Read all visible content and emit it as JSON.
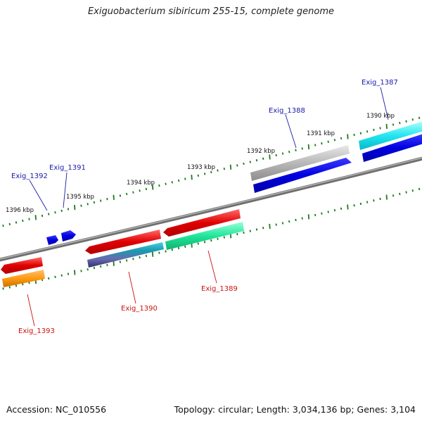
{
  "title": "Exiguobacterium sibiricum 255-15, complete genome",
  "footer": {
    "accession": "Accession: NC_010556",
    "topology": "Topology: circular; Length: 3,034,136 bp; Genes: 3,104"
  },
  "colors": {
    "backbone": "#8a8a8a",
    "tick": "#1d7a1d",
    "label_forward": "#1a1aa8",
    "label_reverse": "#cc1111"
  },
  "scale_labels": [
    {
      "text": "1390 kbp"
    },
    {
      "text": "1391 kbp"
    },
    {
      "text": "1392 kbp"
    },
    {
      "text": "1393 kbp"
    },
    {
      "text": "1394 kbp"
    },
    {
      "text": "1395 kbp"
    },
    {
      "text": "1396 kbp"
    }
  ],
  "gene_labels": [
    {
      "text": "Exig_1387",
      "strand": "forward"
    },
    {
      "text": "Exig_1388",
      "strand": "forward"
    },
    {
      "text": "Exig_1391",
      "strand": "forward"
    },
    {
      "text": "Exig_1392",
      "strand": "forward"
    },
    {
      "text": "Exig_1389",
      "strand": "reverse"
    },
    {
      "text": "Exig_1390",
      "strand": "reverse"
    },
    {
      "text": "Exig_1393",
      "strand": "reverse"
    }
  ]
}
